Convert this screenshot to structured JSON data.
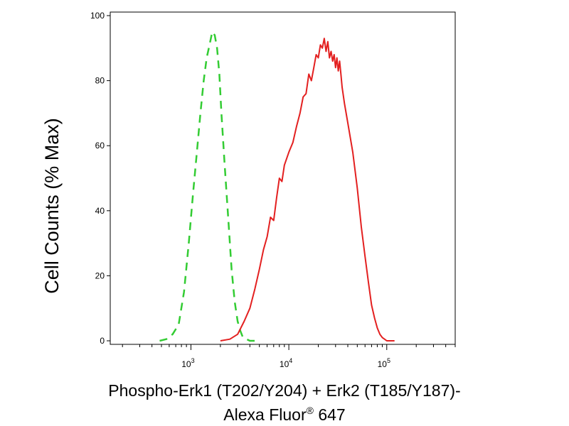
{
  "chart_data": {
    "type": "line",
    "title": "",
    "xlabel_line1": "Phospho-Erk1 (T202/Y204) + Erk2 (T185/Y187)-",
    "xlabel_line2": "Alexa Fluor",
    "xlabel_registered": "®",
    "xlabel_suffix": " 647",
    "ylabel": "Cell Counts (% Max)",
    "x_scale": "log",
    "xlim": [
      150,
      500000
    ],
    "ylim": [
      0,
      100
    ],
    "y_ticks": [
      0,
      20,
      40,
      60,
      80,
      100
    ],
    "x_major_ticks": [
      {
        "value": 1000,
        "base": "10",
        "exp": "3"
      },
      {
        "value": 10000,
        "base": "10",
        "exp": "4"
      },
      {
        "value": 100000,
        "base": "10",
        "exp": "5"
      }
    ],
    "grid": false,
    "legend": "none",
    "series": [
      {
        "color": "#33cc33",
        "dash": "dashed",
        "x": [
          480,
          560,
          650,
          750,
          850,
          950,
          1050,
          1150,
          1250,
          1350,
          1450,
          1550,
          1650,
          1750,
          1850,
          1950,
          2050,
          2200,
          2400,
          2600,
          2800,
          3000,
          3200,
          3400,
          3700,
          4000,
          4500
        ],
        "y": [
          0,
          0.5,
          2,
          5,
          15,
          30,
          45,
          58,
          70,
          80,
          87,
          91,
          95,
          94,
          90,
          82,
          70,
          55,
          38,
          22,
          12,
          6,
          3,
          1,
          0.5,
          0,
          0
        ]
      },
      {
        "color": "#e32020",
        "dash": "solid",
        "x": [
          2000,
          2500,
          3000,
          3500,
          4000,
          4500,
          5000,
          5500,
          6000,
          6500,
          7000,
          7500,
          8000,
          8500,
          9000,
          10000,
          11000,
          12000,
          13000,
          14000,
          15000,
          16000,
          17000,
          18000,
          19000,
          20000,
          21000,
          22000,
          23000,
          24000,
          25000,
          26000,
          27000,
          28000,
          29000,
          30000,
          31000,
          32000,
          33000,
          34000,
          35000,
          37000,
          40000,
          45000,
          50000,
          55000,
          60000,
          65000,
          70000,
          75000,
          80000,
          85000,
          90000,
          95000,
          100000,
          110000,
          120000
        ],
        "y": [
          0,
          0.5,
          2,
          6,
          10,
          16,
          22,
          28,
          32,
          38,
          37,
          44,
          50,
          49,
          54,
          58,
          61,
          66,
          70,
          75,
          76,
          82,
          80,
          84,
          88,
          87,
          91,
          90,
          93,
          89,
          92,
          87,
          89,
          86,
          88,
          84,
          87,
          83,
          86,
          82,
          78,
          73,
          67,
          58,
          47,
          35,
          26,
          18,
          11,
          7,
          4,
          2,
          1,
          0.5,
          0,
          0,
          0
        ]
      }
    ]
  }
}
